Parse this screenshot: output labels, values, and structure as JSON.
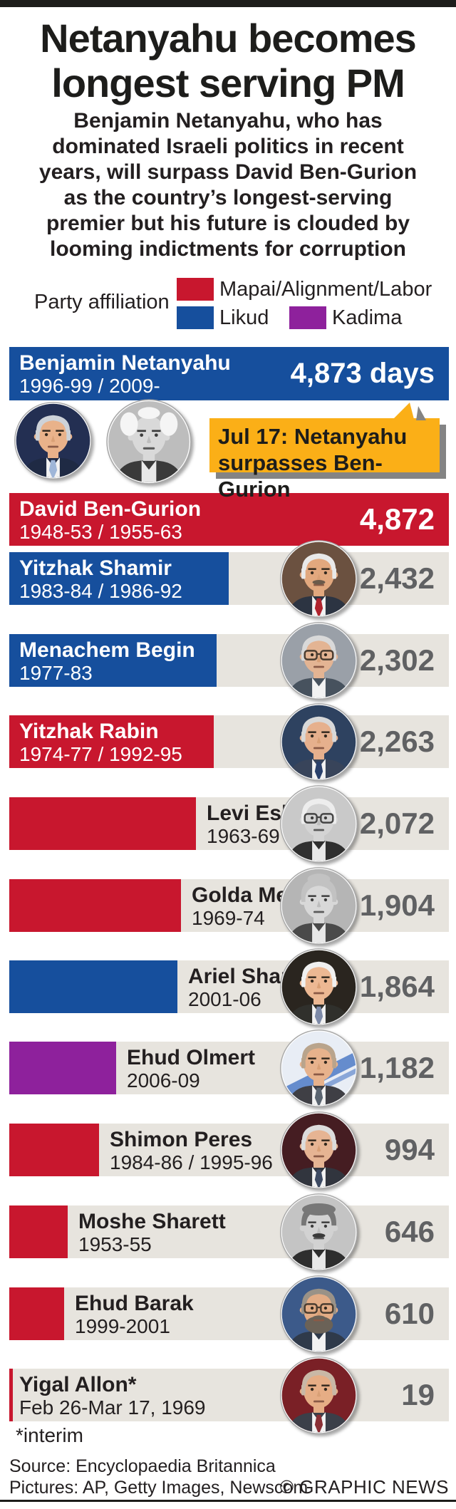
{
  "title": {
    "line1": "Netanyahu becomes",
    "line2": "longest serving PM"
  },
  "subtitle_lines": [
    "Benjamin Netanyahu, who has",
    "dominated Israeli politics in recent",
    "years, will surpass David Ben-Gurion",
    "as the country’s longest-serving",
    "premier but his future is clouded by",
    "looming indictments for corruption"
  ],
  "legend": {
    "label": "Party affiliation",
    "items": [
      {
        "label": "Mapai/Alignment/Labor",
        "color": "#c8172e"
      },
      {
        "label": "Likud",
        "color": "#164f9d"
      },
      {
        "label": "Kadima",
        "color": "#8e219c"
      }
    ]
  },
  "callout": {
    "line1": "Jul 17: Netanyahu",
    "line2": "surpasses Ben-Gurion",
    "bg": "#fbaf17",
    "shadow": "#848484"
  },
  "footnote": "*interim",
  "source": "Source: Encyclopaedia Britannica",
  "pictures": "Pictures: AP, Getty Images, Newscom",
  "credit": "© GRAPHIC NEWS",
  "palette": {
    "strip": "#e7e4de",
    "value_text": "#606163",
    "dark_text": "#231f20",
    "top_bar": "#1d1d1b"
  },
  "chart_data": {
    "type": "bar",
    "orientation": "horizontal",
    "unit": "days",
    "xlim": [
      0,
      4873
    ],
    "legend_position": "top",
    "bars": [
      {
        "name": "Benjamin Netanyahu",
        "years": "1996-99 / 2009-",
        "days": 4873,
        "value_label": "4,873 days",
        "party": "Likud",
        "portrait": {
          "bg": "#232f52",
          "skin": "#e9b28a",
          "hair": "#cdd2d8",
          "style": "side",
          "suit": "#1f2a44",
          "tie": "#9fb6d8",
          "mono": false
        }
      },
      {
        "name": "David Ben-Gurion",
        "years": "1948-53 / 1955-63",
        "days": 4872,
        "value_label": "4,872",
        "party": "Mapai/Alignment/Labor",
        "portrait": {
          "bg": "#bdbdbd",
          "skin": "#d9d9d9",
          "hair": "#f5f5f5",
          "style": "wild",
          "suit": "#3a3a3a",
          "mono": true
        }
      },
      {
        "name": "Yitzhak Shamir",
        "years": "1983-84 / 1986-92",
        "days": 2432,
        "value_label": "2,432",
        "party": "Likud",
        "portrait": {
          "bg": "#6b5140",
          "skin": "#e2a87e",
          "hair": "#e9e9e9",
          "style": "side",
          "mustache": true,
          "suit": "#2c3442",
          "tie": "#b0232d",
          "mono": false
        }
      },
      {
        "name": "Menachem Begin",
        "years": "1977-83",
        "days": 2302,
        "value_label": "2,302",
        "party": "Likud",
        "portrait": {
          "bg": "#9aa0a8",
          "skin": "#e3b493",
          "hair": "#d9d9d9",
          "style": "side",
          "glasses": true,
          "suit": "#47525e",
          "mono": false
        }
      },
      {
        "name": "Yitzhak Rabin",
        "years": "1974-77 / 1992-95",
        "days": 2263,
        "value_label": "2,263",
        "party": "Mapai/Alignment/Labor",
        "portrait": {
          "bg": "#2e4260",
          "skin": "#e6b08d",
          "hair": "#d8d8d8",
          "style": "side",
          "suit": "#38445a",
          "tie": "#29406b",
          "mono": false
        }
      },
      {
        "name": "Levi Eshkol",
        "years": "1963-69",
        "days": 2072,
        "value_label": "2,072",
        "party": "Mapai/Alignment/Labor",
        "portrait": {
          "bg": "#c9c9c9",
          "skin": "#d4d4d4",
          "hair": "#ededed",
          "style": "side",
          "glasses": true,
          "suit": "#2f2f2f",
          "mono": true
        }
      },
      {
        "name": "Golda Meir",
        "years": "1969-74",
        "days": 1904,
        "value_label": "1,904",
        "party": "Mapai/Alignment/Labor",
        "portrait": {
          "bg": "#b5b5b5",
          "skin": "#d8d8d8",
          "hair": "#c2c2c2",
          "style": "woman",
          "suit": "#4a4a4a",
          "mono": true
        }
      },
      {
        "name": "Ariel Sharon",
        "years": "2001-06",
        "days": 1864,
        "value_label": "1,864",
        "party": "Likud",
        "portrait": {
          "bg": "#2a251f",
          "skin": "#ecb893",
          "hair": "#f0f0f0",
          "style": "side",
          "suit": "#30302c",
          "tie": "#7d8aa8",
          "mono": false
        }
      },
      {
        "name": "Ehud Olmert",
        "years": "2006-09",
        "days": 1182,
        "value_label": "1,182",
        "party": "Kadima",
        "portrait": {
          "bg": "#e8edf5",
          "flag": true,
          "skin": "#e7b28c",
          "hair": "#b9a48c",
          "style": "side",
          "suit": "#3f3f45",
          "tie": "#5a6470",
          "mono": false
        }
      },
      {
        "name": "Shimon Peres",
        "years": "1984-86 / 1995-96",
        "days": 994,
        "value_label": "994",
        "party": "Mapai/Alignment/Labor",
        "portrait": {
          "bg": "#451d22",
          "skin": "#e6b493",
          "hair": "#dcdcdc",
          "style": "side",
          "suit": "#31353e",
          "tie": "#3d4a63",
          "mono": false
        }
      },
      {
        "name": "Moshe Sharett",
        "years": "1953-55",
        "days": 646,
        "value_label": "646",
        "party": "Mapai/Alignment/Labor",
        "portrait": {
          "bg": "#c4c4c4",
          "skin": "#d2d2d2",
          "hair": "#777777",
          "style": "full",
          "mustache": true,
          "suit": "#2e2e2e",
          "mono": true
        }
      },
      {
        "name": "Ehud Barak",
        "years": "1999-2001",
        "days": 610,
        "value_label": "610",
        "party": "Mapai/Alignment/Labor",
        "portrait": {
          "bg": "#3c5a8a",
          "skin": "#e3ac85",
          "hair": "#9a9287",
          "style": "side",
          "glasses": true,
          "beard": true,
          "suit": "#2f3a4a",
          "mono": false
        }
      },
      {
        "name": "Yigal Allon*",
        "years": "Feb 26-Mar 17, 1969",
        "days": 19,
        "value_label": "19",
        "party": "Mapai/Alignment/Labor",
        "portrait": {
          "bg": "#7a2026",
          "skin": "#e6ad85",
          "hair": "#c9b8a6",
          "style": "side",
          "suit": "#3b3f49",
          "tie": "#8a2f35",
          "mono": false
        }
      }
    ]
  }
}
